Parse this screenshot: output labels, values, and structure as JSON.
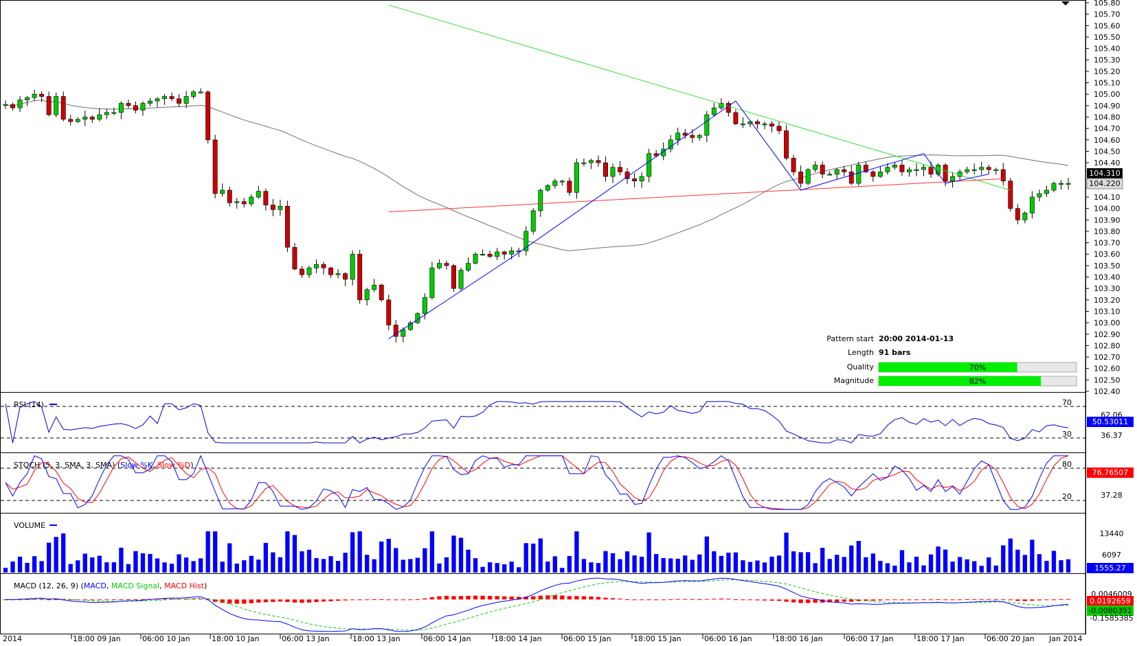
{
  "colors": {
    "bull": "#00cc00",
    "bear": "#cc0000",
    "wick": "#000000",
    "sma": "#707070",
    "resistance": "#33dd33",
    "support": "#ff3333",
    "pattern": "#0000ff",
    "rsi": "#0000cc",
    "stochK": "#0000ff",
    "stochD": "#ff0000",
    "volume": "#0000ff",
    "macdLine": "#0000ff",
    "macdSignal": "#00cc00",
    "macdHist": "#ff0000",
    "quality_fill": "#00ee00",
    "current_price_bg": "#000000",
    "prev_price_bg": "#dddddd",
    "rsi_tag_bg": "#0000ff",
    "stoch_tag_bg": "#ff0000",
    "vol_tag_bg": "#0000ff",
    "macd_tag_bg_red": "#ff0000",
    "macd_tag_bg_green": "#00cc00"
  },
  "price_axis": {
    "ticks": [
      "105.80",
      "105.70",
      "105.60",
      "105.50",
      "105.40",
      "105.30",
      "105.20",
      "105.10",
      "105.00",
      "104.90",
      "104.80",
      "104.70",
      "104.60",
      "104.50",
      "104.40",
      "104.10",
      "104.00",
      "103.90",
      "103.80",
      "103.70",
      "103.60",
      "103.50",
      "103.40",
      "103.30",
      "103.20",
      "103.10",
      "103.00",
      "102.90",
      "102.80",
      "102.70",
      "102.60",
      "102.50",
      "102.40"
    ],
    "current_price": "104.310",
    "last_price": "104.220"
  },
  "time_axis": {
    "labels": [
      "2014",
      "18:00 09 Jan",
      "06:00 10 Jan",
      "18:00 10 Jan",
      "06:00 13 Jan",
      "18:00 13 Jan",
      "06:00 14 Jan",
      "18:00 14 Jan",
      "06:00 15 Jan",
      "18:00 15 Jan",
      "06:00 16 Jan",
      "18:00 16 Jan",
      "06:00 17 Jan",
      "18:00 17 Jan",
      "06:00 20 Jan",
      "Jan 2014"
    ]
  },
  "pattern_info": {
    "start_label": "Pattern start",
    "start_value": "20:00 2014-01-13",
    "length_label": "Length",
    "length_value": "91 bars",
    "quality_label": "Quality",
    "quality_value": "70%",
    "quality_fraction": 0.7,
    "magnitude_label": "Magnitude",
    "magnitude_value": "82%",
    "magnitude_fraction": 0.82
  },
  "rsi": {
    "title": "RSI (14)",
    "upper_level": "70",
    "lower_level": "30",
    "axis_ticks": [
      "62.06",
      "36.37"
    ],
    "current": "50.53011"
  },
  "stoch": {
    "title_prefix": "STOCH (5, 3, SMA, 3, SMA)",
    "k_label": "Slow %K",
    "d_label": "Slow %D",
    "upper_level": "80",
    "lower_level": "20",
    "axis_ticks": [
      "37.28"
    ],
    "current": "76.76507"
  },
  "volume": {
    "title": "VOLUME",
    "axis_ticks": [
      "13440",
      "6097"
    ],
    "current": "1555.27"
  },
  "macd": {
    "title_prefix": "MACD (12, 26, 9)",
    "macd_label": "MACD",
    "signal_label": "MACD Signal",
    "hist_label": "MACD Hist",
    "axis_ticks": [
      "0.0046009",
      "-0.1585385"
    ],
    "current_macd": "0.0192659",
    "current_signal": "-0.0080391"
  },
  "chart_data": {
    "type": "candlestick",
    "instrument_timeframe": "1h",
    "ylim": [
      102.4,
      105.8
    ],
    "start_price": 104.91,
    "closes": [
      104.91,
      104.88,
      104.95,
      104.97,
      105.0,
      104.98,
      104.82,
      104.98,
      104.78,
      104.76,
      104.78,
      104.8,
      104.78,
      104.82,
      104.84,
      104.84,
      104.92,
      104.9,
      104.86,
      104.92,
      104.94,
      104.96,
      104.98,
      104.96,
      104.92,
      104.98,
      105.02,
      105.02,
      104.6,
      104.13,
      104.16,
      104.05,
      104.06,
      104.04,
      104.1,
      104.15,
      104.03,
      103.99,
      104.02,
      103.66,
      103.47,
      103.42,
      103.48,
      103.51,
      103.48,
      103.42,
      103.43,
      103.38,
      103.6,
      103.2,
      103.29,
      103.33,
      103.2,
      102.98,
      102.88,
      102.94,
      103.0,
      103.08,
      103.22,
      103.48,
      103.52,
      103.5,
      103.3,
      103.46,
      103.52,
      103.6,
      103.6,
      103.58,
      103.62,
      103.6,
      103.63,
      103.63,
      103.8,
      103.98,
      104.16,
      104.2,
      104.24,
      104.24,
      104.14,
      104.4,
      104.4,
      104.42,
      104.4,
      104.28,
      104.36,
      104.32,
      104.26,
      104.24,
      104.28,
      104.48,
      104.46,
      104.52,
      104.6,
      104.66,
      104.64,
      104.62,
      104.64,
      104.82,
      104.88,
      104.92,
      104.84,
      104.74,
      104.74,
      104.76,
      104.74,
      104.74,
      104.72,
      104.68,
      104.44,
      104.32,
      104.22,
      104.34,
      104.38,
      104.3,
      104.3,
      104.34,
      104.32,
      104.22,
      104.38,
      104.32,
      104.28,
      104.32,
      104.36,
      104.38,
      104.32,
      104.34,
      104.34,
      104.36,
      104.3,
      104.38,
      104.24,
      104.28,
      104.32,
      104.34,
      104.34,
      104.36,
      104.34,
      104.34,
      104.24,
      104.0,
      103.9,
      103.96,
      104.1,
      104.13,
      104.16,
      104.22,
      104.22,
      104.22
    ]
  }
}
